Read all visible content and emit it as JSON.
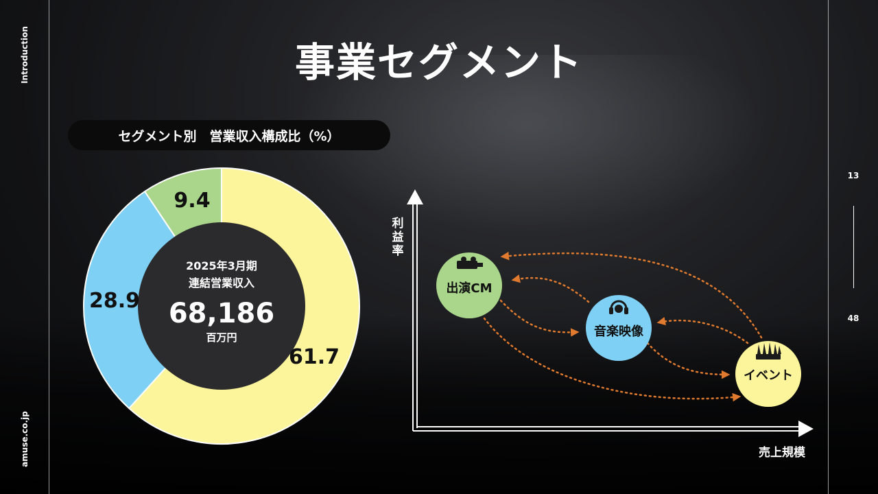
{
  "slide": {
    "title": "事業セグメント",
    "side_top": "Introduction",
    "side_bottom": "amuse.co.jp",
    "page_current": "13",
    "page_total": "48"
  },
  "donut": {
    "heading": "セグメント別　営業収入構成比（%）",
    "center_line1": "2025年3月期",
    "center_line2": "連結営業収入",
    "center_value": "68,186",
    "center_unit": "百万円"
  },
  "chart_data": {
    "type": "pie",
    "categories": [
      "",
      "",
      ""
    ],
    "values": [
      61.7,
      28.9,
      9.4
    ],
    "labels": [
      "61.7",
      "28.9",
      "9.4"
    ],
    "colors": [
      "#fdf59b",
      "#7fd0f5",
      "#a9d68a"
    ],
    "title": "セグメント別　営業収入構成比（%）"
  },
  "positioning": {
    "y_axis_label": "利益率",
    "x_axis_label": "売上規模",
    "nodes": [
      {
        "name": "出演CM",
        "icon": "camera-crew-icon",
        "color": "#a9d68a"
      },
      {
        "name": "音楽映像",
        "icon": "headphones-icon",
        "color": "#7fd0f5"
      },
      {
        "name": "イベント",
        "icon": "crowd-icon",
        "color": "#fdf59b"
      }
    ],
    "arrow_color": "#e07a2e"
  }
}
